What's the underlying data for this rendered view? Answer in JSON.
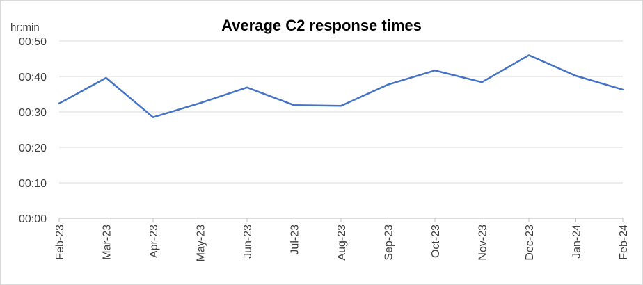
{
  "chart_data": {
    "type": "line",
    "title": "Average C2 response times",
    "ylabel": "hr:min",
    "xlabel": "",
    "categories": [
      "Feb-23",
      "Mar-23",
      "Apr-23",
      "May-23",
      "Jun-23",
      "Jul-23",
      "Aug-23",
      "Sep-23",
      "Oct-23",
      "Nov-23",
      "Dec-23",
      "Jan-24",
      "Feb-24"
    ],
    "series": [
      {
        "values_minutes": [
          32.4,
          39.6,
          28.5,
          32.5,
          36.9,
          31.9,
          31.7,
          37.7,
          41.7,
          38.4,
          46.0,
          40.2,
          36.3
        ]
      }
    ],
    "yticks": [
      "00:00",
      "00:10",
      "00:20",
      "00:30",
      "00:40",
      "00:50"
    ],
    "yticks_minutes": [
      0,
      10,
      20,
      30,
      40,
      50
    ],
    "ylim": [
      0,
      50
    ],
    "grid": true,
    "legend": "none",
    "line_color": "#4472c4",
    "grid_color": "#d9d9d9",
    "axis_color": "#bfbfbf"
  }
}
